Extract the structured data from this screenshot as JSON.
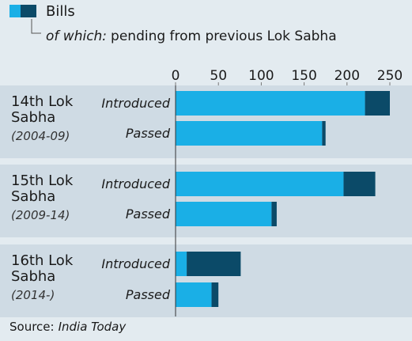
{
  "chart_data": {
    "type": "stacked-bar-horizontal",
    "legend_note": "of which:",
    "source_label": "Source:",
    "source": "India Today",
    "groups": [
      {
        "name": "14th Lok Sabha",
        "period": "(2004-09)"
      },
      {
        "name": "15th Lok Sabha",
        "period": "(2009-14)"
      },
      {
        "name": "16th Lok Sabha",
        "period": "(2014-)"
      }
    ],
    "categories": [
      "Introduced",
      "Passed",
      "Introduced",
      "Passed",
      "Introduced",
      "Passed"
    ],
    "series": [
      {
        "name": "Bills",
        "color": "#1aafe6",
        "values": [
          221,
          171,
          196,
          112,
          13,
          42
        ]
      },
      {
        "name": "pending from previous Lok Sabha",
        "color": "#0b4a68",
        "values": [
          29,
          4,
          37,
          6,
          63,
          8
        ]
      }
    ],
    "xlim": [
      0,
      250
    ],
    "xticks": [
      0,
      50,
      100,
      150,
      200,
      250
    ],
    "grid": false
  }
}
